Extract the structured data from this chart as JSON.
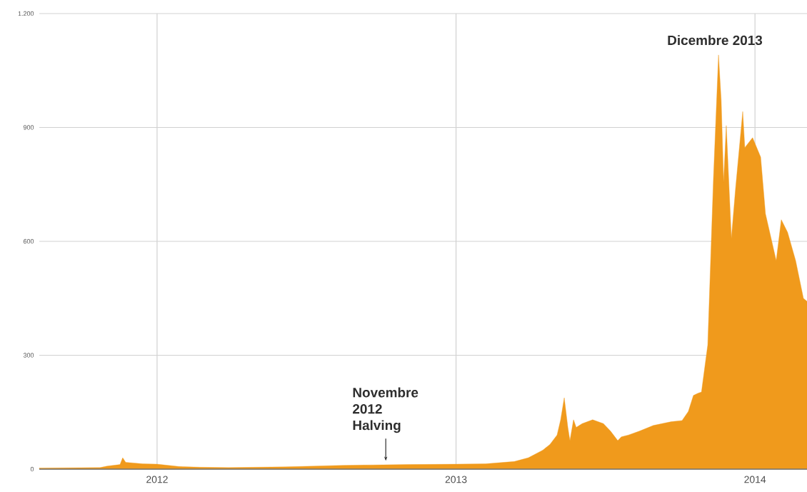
{
  "chart_data": {
    "type": "area",
    "color": "#f09a1c",
    "x": [
      2011.606,
      2011.809,
      2011.833,
      2011.876,
      2011.885,
      2011.895,
      2011.952,
      2012.0,
      2012.072,
      2012.143,
      2012.239,
      2012.334,
      2012.43,
      2012.526,
      2012.621,
      2012.717,
      2012.836,
      2013.0,
      2013.099,
      2013.195,
      2013.242,
      2013.29,
      2013.314,
      2013.338,
      2013.35,
      2013.362,
      2013.374,
      2013.381,
      2013.393,
      2013.402,
      2013.422,
      2013.457,
      2013.493,
      2013.517,
      2013.541,
      2013.553,
      2013.577,
      2013.613,
      2013.66,
      2013.72,
      2013.756,
      2013.777,
      2013.794,
      2013.809,
      2013.821,
      2013.842,
      2013.861,
      2013.878,
      2013.887,
      2013.895,
      2013.904,
      2013.921,
      2013.935,
      2013.959,
      2013.966,
      2013.992,
      2014.019,
      2014.035,
      2014.071,
      2014.088,
      2014.109,
      2014.136,
      2014.162,
      2014.174
    ],
    "values": [
      3,
      4,
      8,
      12,
      30,
      18,
      14,
      13,
      7,
      5,
      4,
      5,
      6,
      8,
      10,
      11,
      12,
      13,
      14,
      20,
      30,
      50,
      65,
      90,
      130,
      188,
      110,
      75,
      130,
      110,
      120,
      130,
      120,
      100,
      75,
      85,
      90,
      100,
      115,
      125,
      128,
      152,
      194,
      200,
      203,
      327,
      764,
      1091,
      971,
      756,
      905,
      608,
      739,
      942,
      847,
      873,
      822,
      673,
      549,
      657,
      624,
      549,
      450,
      442
    ],
    "xlim": [
      2011.606,
      2014.174
    ],
    "xticks": [
      2012,
      2013,
      2014
    ],
    "ylim": [
      0,
      1200
    ],
    "yticks": [
      0,
      300,
      600,
      900,
      {
        "value": 1200,
        "label": "1.200"
      }
    ],
    "grid": true,
    "annotations": [
      "Dicembre 2013",
      {
        "text": "Novembre 2012 Halving",
        "x": 2012.765,
        "y": 5
      }
    ]
  }
}
